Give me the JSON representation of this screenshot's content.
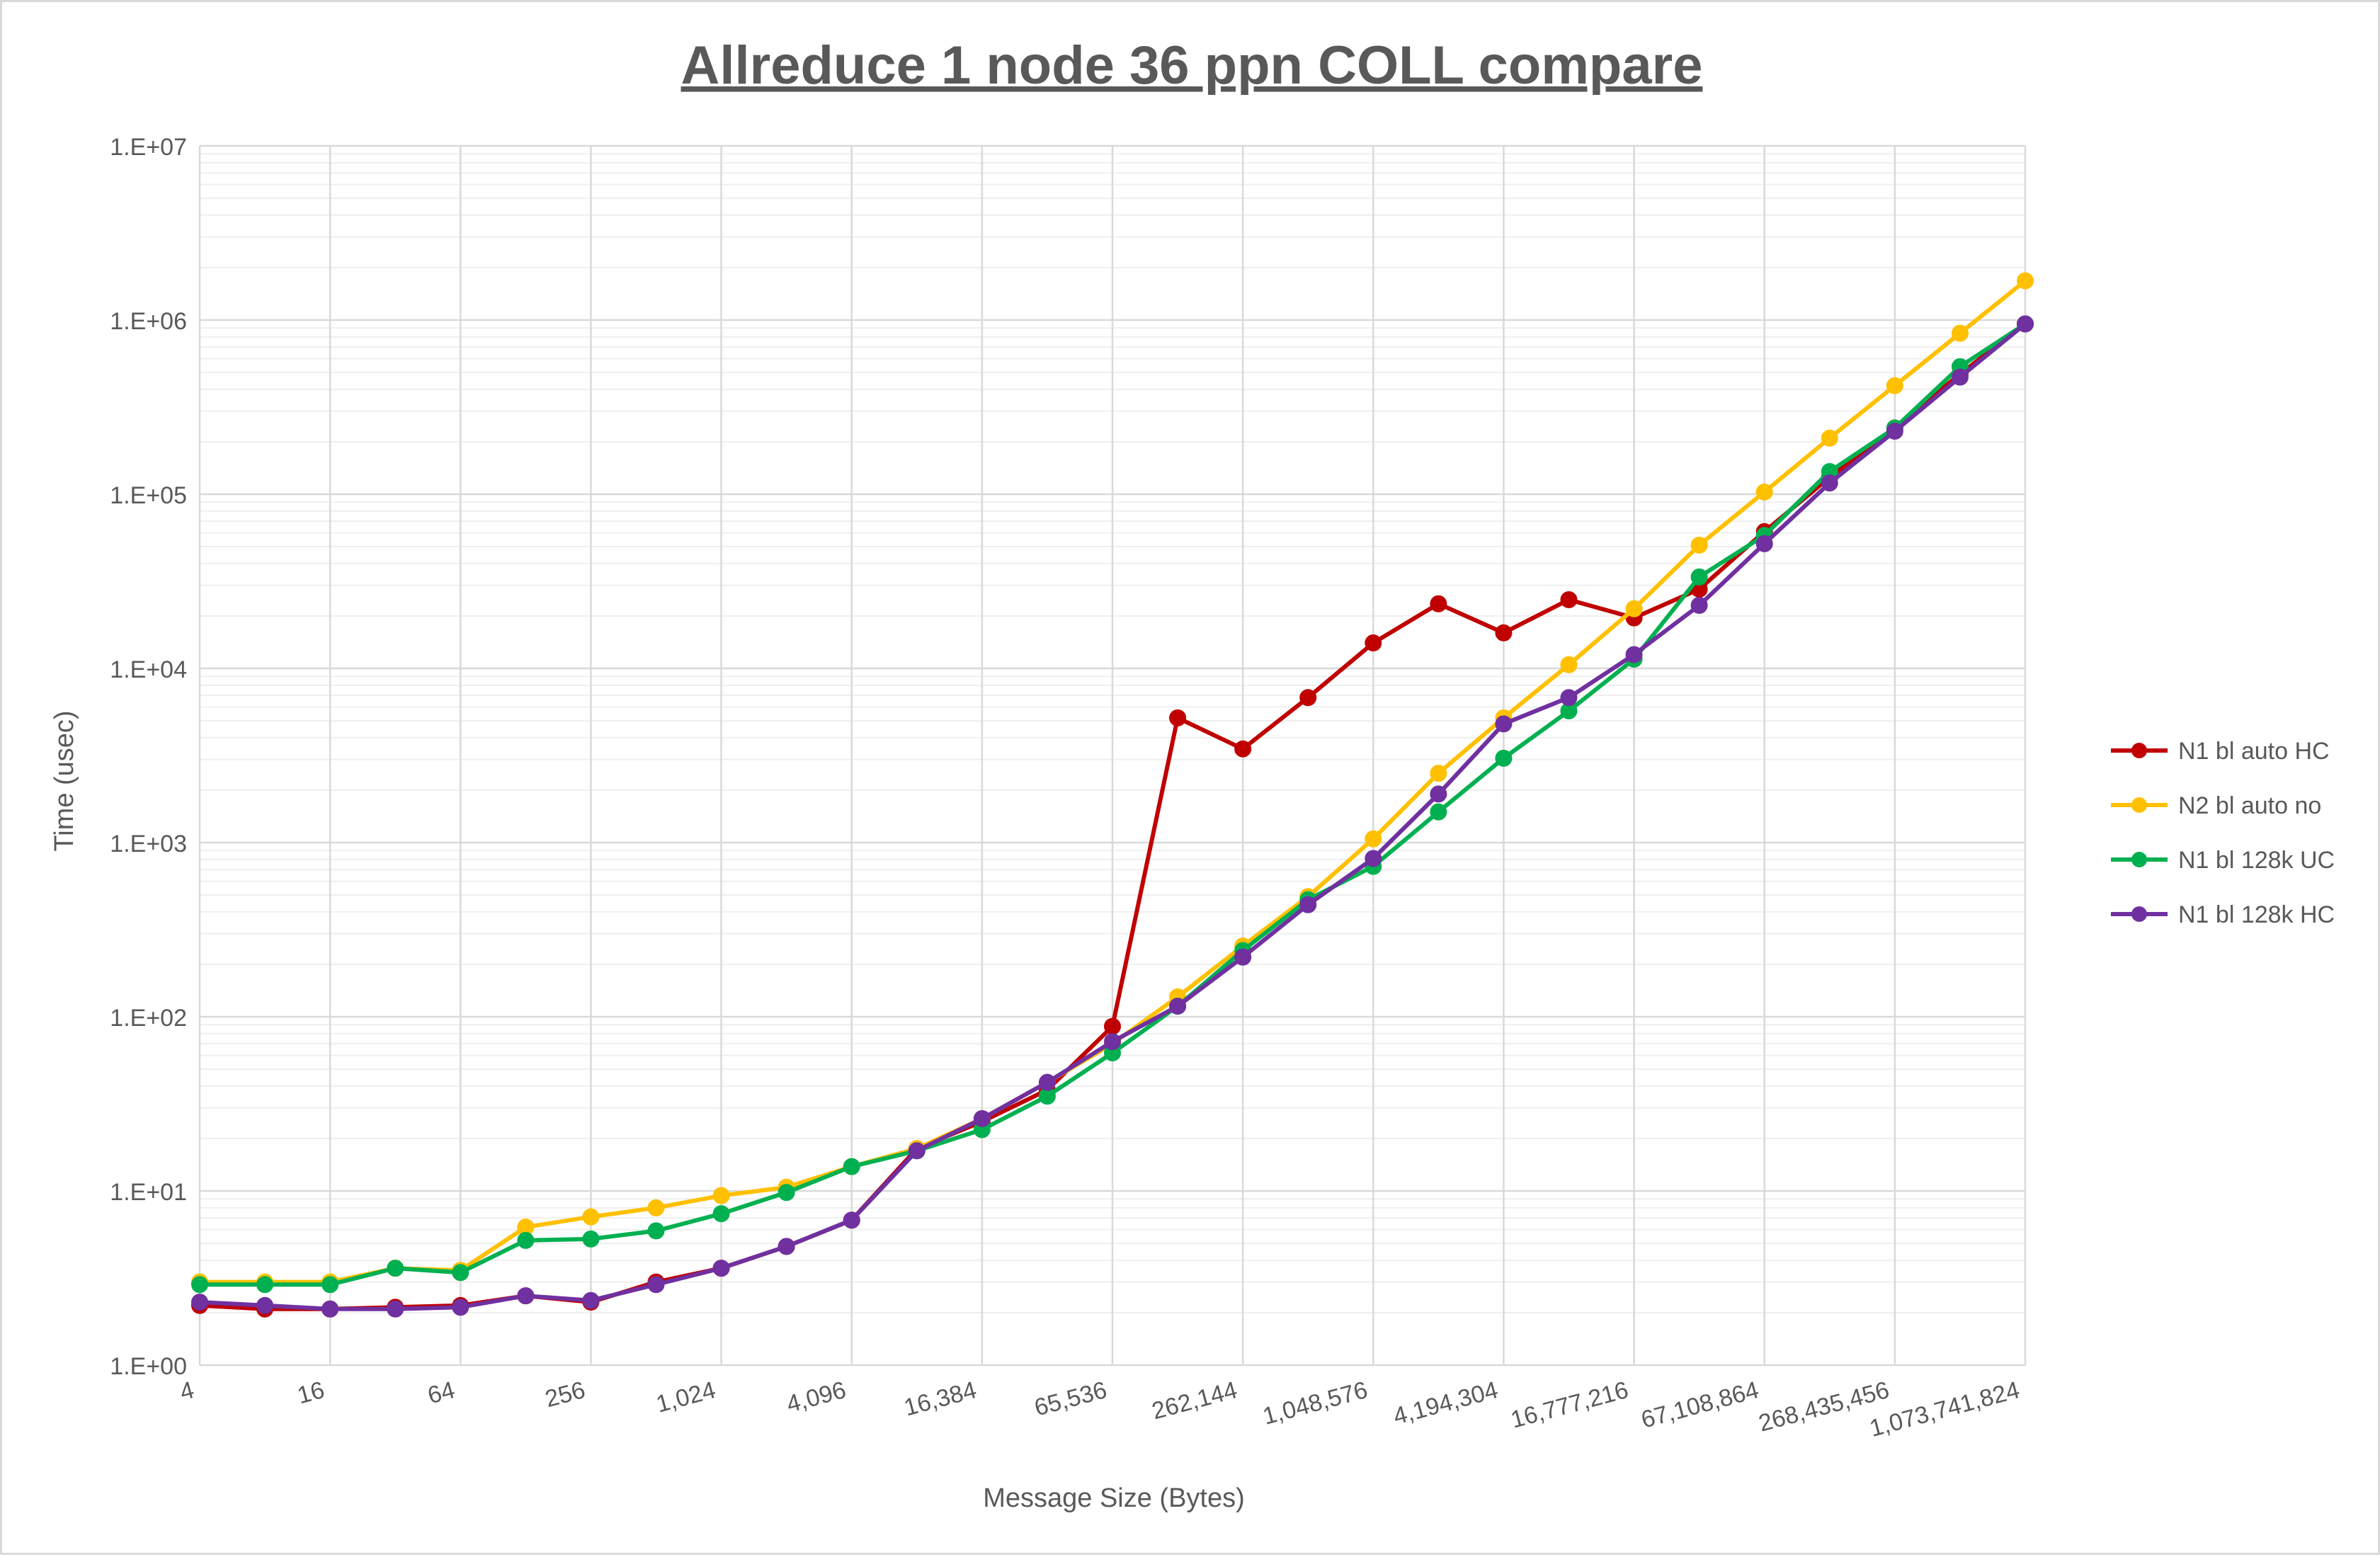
{
  "chart_data": {
    "type": "line",
    "title": "Allreduce 1 node 36 ppn COLL compare",
    "xlabel": "Message Size (Bytes)",
    "ylabel": "Time (usec)",
    "y_scale": "log10",
    "x_scale": "log2",
    "ylim": [
      1,
      10000000
    ],
    "xlim": [
      4,
      1073741824
    ],
    "grid": true,
    "legend_position": "right",
    "y_tick_values": [
      1,
      10,
      100,
      1000,
      10000,
      100000,
      1000000,
      10000000
    ],
    "y_tick_labels": [
      "1.E+00",
      "1.E+01",
      "1.E+02",
      "1.E+03",
      "1.E+04",
      "1.E+05",
      "1.E+06",
      "1.E+07"
    ],
    "x_tick_values": [
      4,
      16,
      64,
      256,
      1024,
      4096,
      16384,
      65536,
      262144,
      1048576,
      4194304,
      16777216,
      67108864,
      268435456,
      1073741824
    ],
    "x_tick_labels": [
      "4",
      "16",
      "64",
      "256",
      "1,024",
      "4,096",
      "16,384",
      "65,536",
      "262,144",
      "1,048,576",
      "4,194,304",
      "16,777,216",
      "67,108,864",
      "268,435,456",
      "1,073,741,824"
    ],
    "x": [
      4,
      8,
      16,
      32,
      64,
      128,
      256,
      512,
      1024,
      2048,
      4096,
      8192,
      16384,
      32768,
      65536,
      131072,
      262144,
      524288,
      1048576,
      2097152,
      4194304,
      8388608,
      16777216,
      33554432,
      67108864,
      134217728,
      268435456,
      536870912,
      1073741824
    ],
    "series": [
      {
        "name": "N1 bl auto HC",
        "color": "#c00000",
        "values": [
          2.2,
          2.1,
          2.1,
          2.15,
          2.2,
          2.5,
          2.3,
          3.0,
          3.6,
          4.8,
          6.8,
          17.5,
          25,
          38,
          88,
          5200,
          3450,
          6800,
          14000,
          23500,
          16000,
          24800,
          19500,
          28500,
          61000,
          125000,
          240000,
          490000,
          950000
        ]
      },
      {
        "name": "N2 bl auto no",
        "color": "#ffc000",
        "values": [
          3.0,
          3.0,
          3.0,
          3.6,
          3.5,
          6.2,
          7.1,
          8.0,
          9.4,
          10.5,
          13.8,
          17.5,
          26,
          42,
          70,
          130,
          255,
          490,
          1050,
          2500,
          5200,
          10500,
          22000,
          51000,
          103000,
          210000,
          420000,
          840000,
          1680000
        ]
      },
      {
        "name": "N1 bl 128k UC",
        "color": "#00b050",
        "values": [
          2.9,
          2.9,
          2.9,
          3.6,
          3.4,
          5.2,
          5.3,
          5.9,
          7.4,
          9.8,
          13.8,
          17.0,
          22.5,
          35,
          62,
          115,
          240,
          470,
          730,
          1500,
          3050,
          5700,
          11300,
          33500,
          58000,
          135000,
          240000,
          540000,
          950000
        ]
      },
      {
        "name": "N1 bl 128k HC",
        "color": "#7030a0",
        "values": [
          2.3,
          2.2,
          2.1,
          2.1,
          2.15,
          2.5,
          2.35,
          2.9,
          3.6,
          4.8,
          6.8,
          17.0,
          26,
          42,
          72,
          115,
          220,
          440,
          810,
          1900,
          4800,
          6800,
          12000,
          23000,
          52000,
          116000,
          230000,
          470000,
          950000
        ]
      }
    ]
  }
}
